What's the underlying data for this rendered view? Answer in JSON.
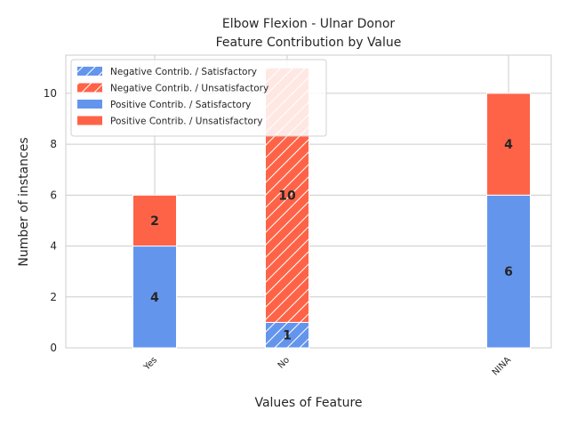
{
  "chart_data": {
    "type": "bar",
    "stacked": true,
    "title_line1": "Elbow Flexion - Ulnar Donor",
    "title_line2": "Feature Contribution by Value",
    "xlabel": "Values of Feature",
    "ylabel": "Number of instances",
    "ylim": [
      0,
      11.5
    ],
    "yticks": [
      0,
      2,
      4,
      6,
      8,
      10
    ],
    "grid": true,
    "legend_position": "top-left",
    "categories": [
      "Yes",
      "No",
      "NINA"
    ],
    "colors": {
      "satisfactory": "#6495ed",
      "unsatisfactory": "#ff6347"
    },
    "series": [
      {
        "name": "Negative Contrib. / Satisfactory",
        "hatched": true,
        "color_key": "satisfactory",
        "values": [
          0,
          1,
          0
        ]
      },
      {
        "name": "Negative Contrib. / Unsatisfactory",
        "hatched": true,
        "color_key": "unsatisfactory",
        "values": [
          0,
          10,
          0
        ]
      },
      {
        "name": "Positive Contrib. / Satisfactory",
        "hatched": false,
        "color_key": "satisfactory",
        "values": [
          4,
          0,
          6
        ]
      },
      {
        "name": "Positive Contrib. / Unsatisfactory",
        "hatched": false,
        "color_key": "unsatisfactory",
        "values": [
          2,
          0,
          4
        ]
      }
    ],
    "stacks": [
      {
        "category": "Yes",
        "segments": [
          {
            "series": 2,
            "value": 4
          },
          {
            "series": 3,
            "value": 2
          }
        ]
      },
      {
        "category": "No",
        "segments": [
          {
            "series": 0,
            "value": 1
          },
          {
            "series": 1,
            "value": 10
          }
        ]
      },
      {
        "category": "NINA",
        "segments": [
          {
            "series": 2,
            "value": 6
          },
          {
            "series": 3,
            "value": 4
          }
        ]
      }
    ]
  }
}
